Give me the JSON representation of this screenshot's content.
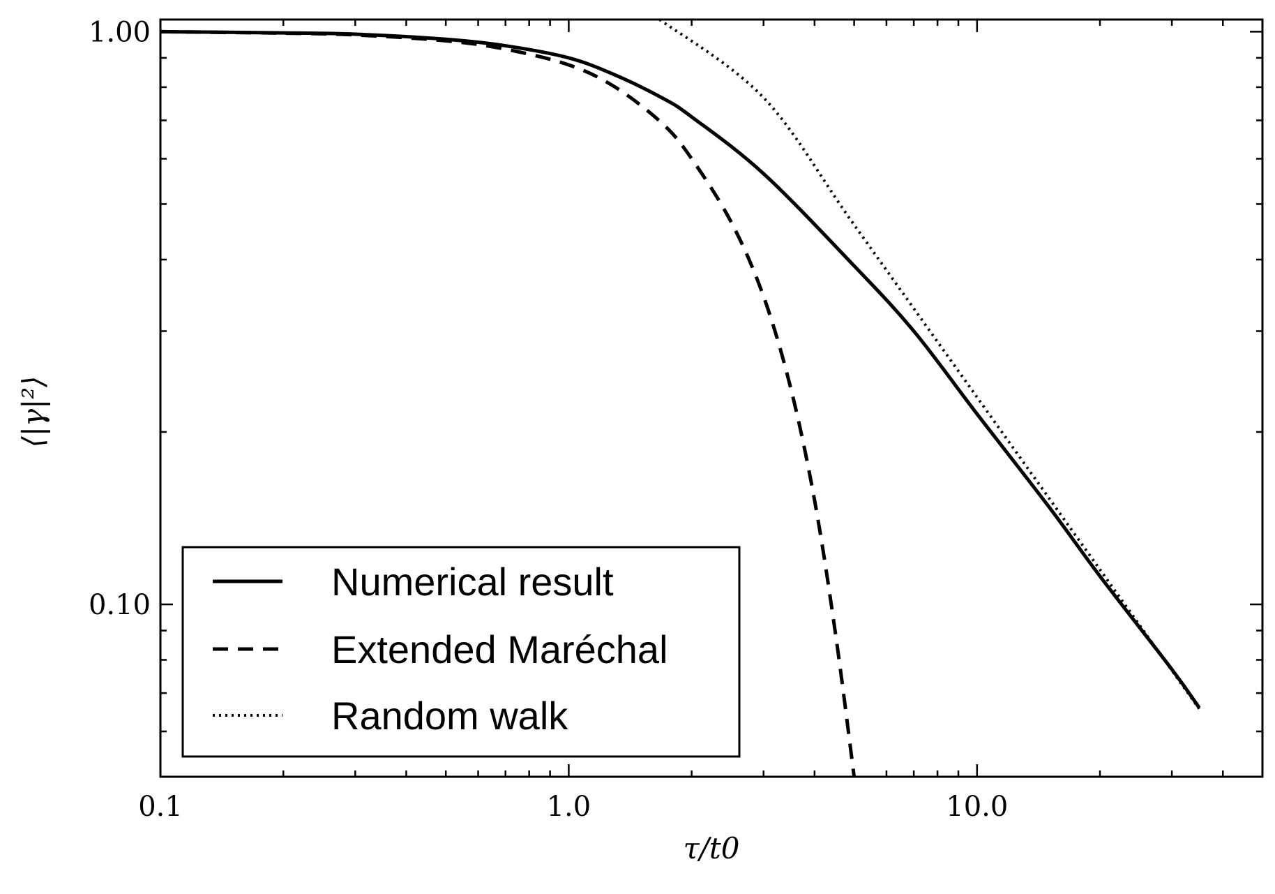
{
  "chart_data": {
    "type": "line",
    "title": "",
    "xlabel": "τ/t0",
    "ylabel": "⟨|γ|²⟩",
    "xscale": "log",
    "yscale": "log",
    "xlim": [
      0.1,
      50
    ],
    "ylim": [
      0.05,
      1.05
    ],
    "grid": false,
    "legend_position": "lower-left",
    "x_ticks": [
      {
        "value": 0.1,
        "label": "0.1"
      },
      {
        "value": 1.0,
        "label": "1.0"
      },
      {
        "value": 10.0,
        "label": "10.0"
      }
    ],
    "y_ticks": [
      {
        "value": 1.0,
        "label": "1.00"
      },
      {
        "value": 0.1,
        "label": "0.10"
      }
    ],
    "series": [
      {
        "name": "Numerical result",
        "style": "solid",
        "x": [
          0.1,
          0.2,
          0.3,
          0.5,
          0.7,
          1.0,
          1.3,
          1.7,
          2.0,
          3.0,
          5.0,
          7.0,
          10.0,
          15.0,
          20.0,
          30.0,
          35.0
        ],
        "y": [
          1.0,
          0.995,
          0.99,
          0.97,
          0.945,
          0.9,
          0.84,
          0.765,
          0.71,
          0.565,
          0.39,
          0.3,
          0.215,
          0.148,
          0.112,
          0.077,
          0.066
        ]
      },
      {
        "name": "Extended Maréchal",
        "style": "dashed",
        "x": [
          0.1,
          0.2,
          0.3,
          0.5,
          0.7,
          1.0,
          1.3,
          1.7,
          2.0,
          2.5,
          3.0,
          3.5,
          4.0,
          4.5,
          5.0
        ],
        "y": [
          1.0,
          0.994,
          0.987,
          0.964,
          0.932,
          0.875,
          0.8,
          0.69,
          0.6,
          0.465,
          0.345,
          0.238,
          0.152,
          0.089,
          0.05
        ]
      },
      {
        "name": "Random walk",
        "style": "dotted",
        "x": [
          1.67,
          3.0,
          5.0,
          10.0,
          20.0,
          35.0
        ],
        "y": [
          1.05,
          0.767,
          0.46,
          0.23,
          0.115,
          0.0657
        ]
      }
    ]
  }
}
